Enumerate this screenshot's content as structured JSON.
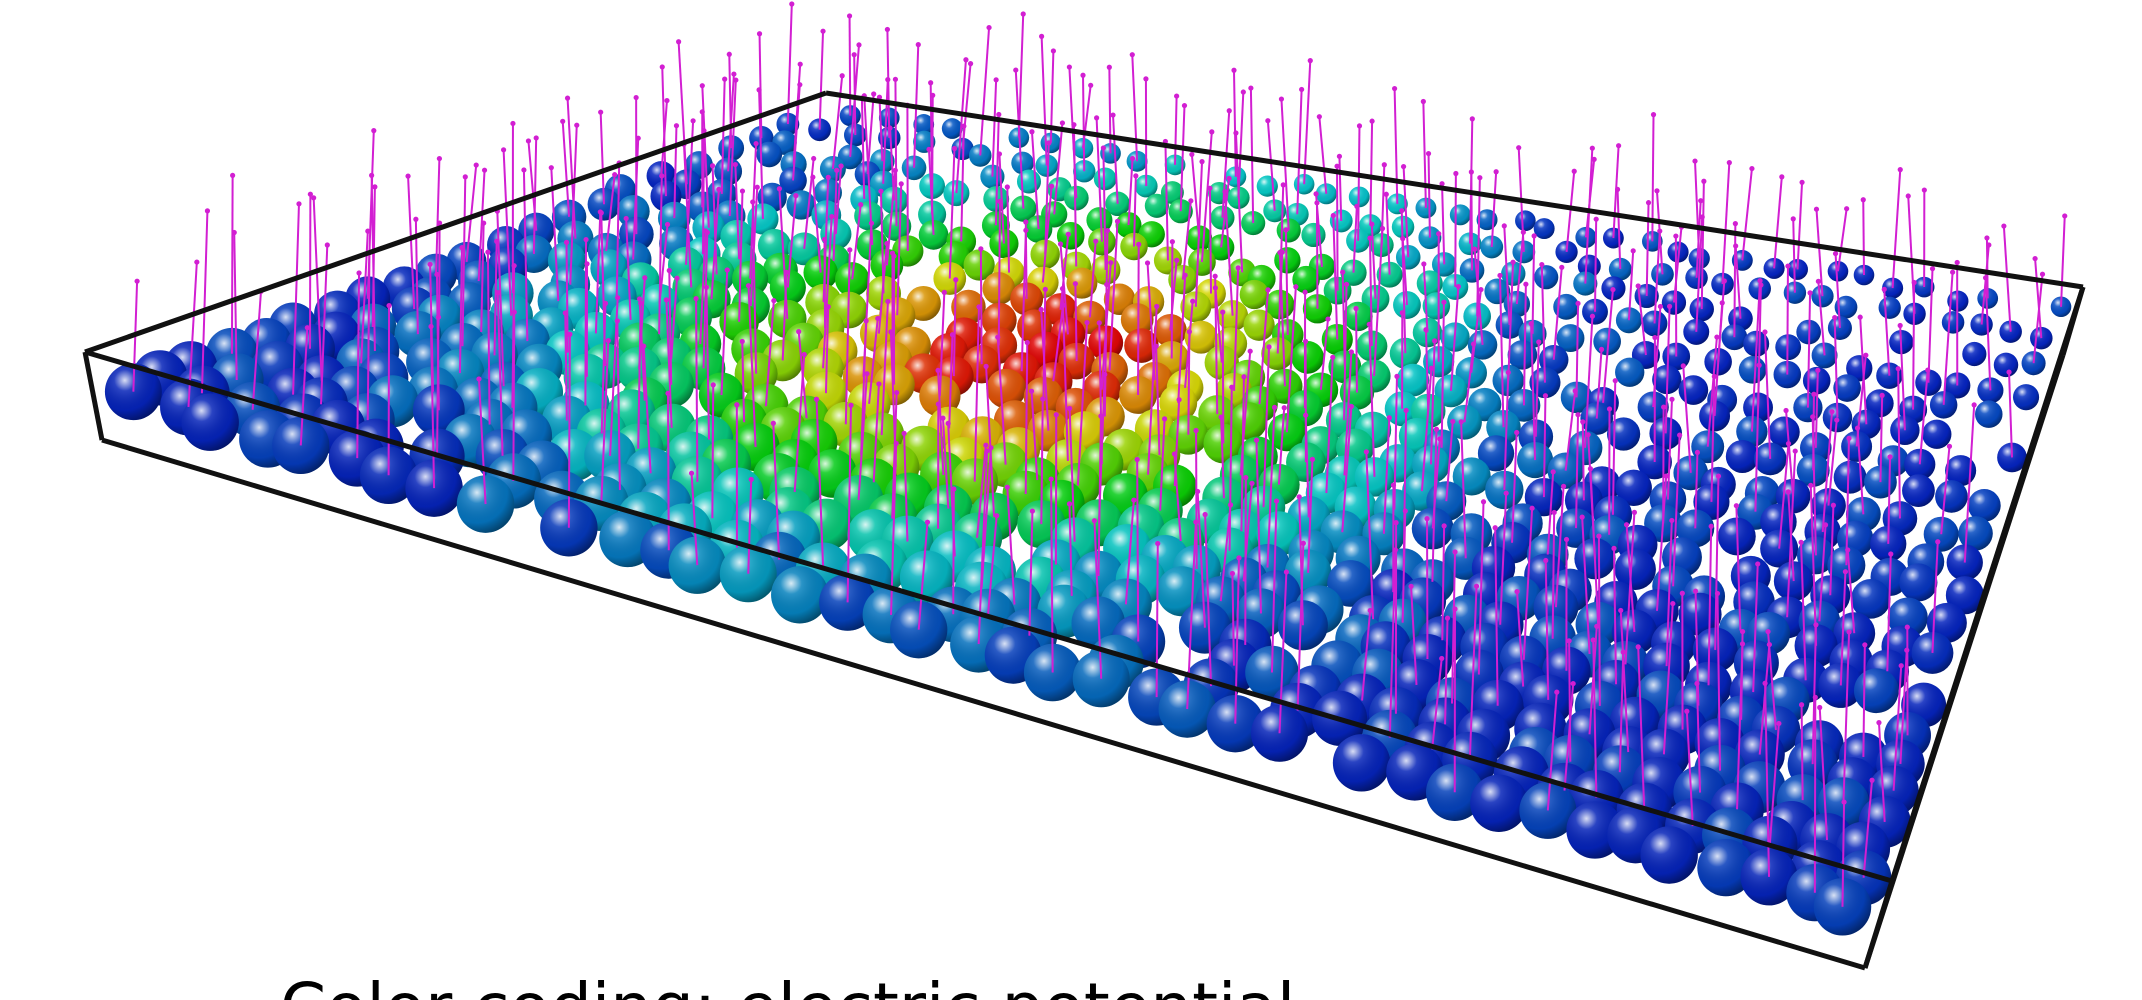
{
  "caption": "Color coding: electric potential"
}
